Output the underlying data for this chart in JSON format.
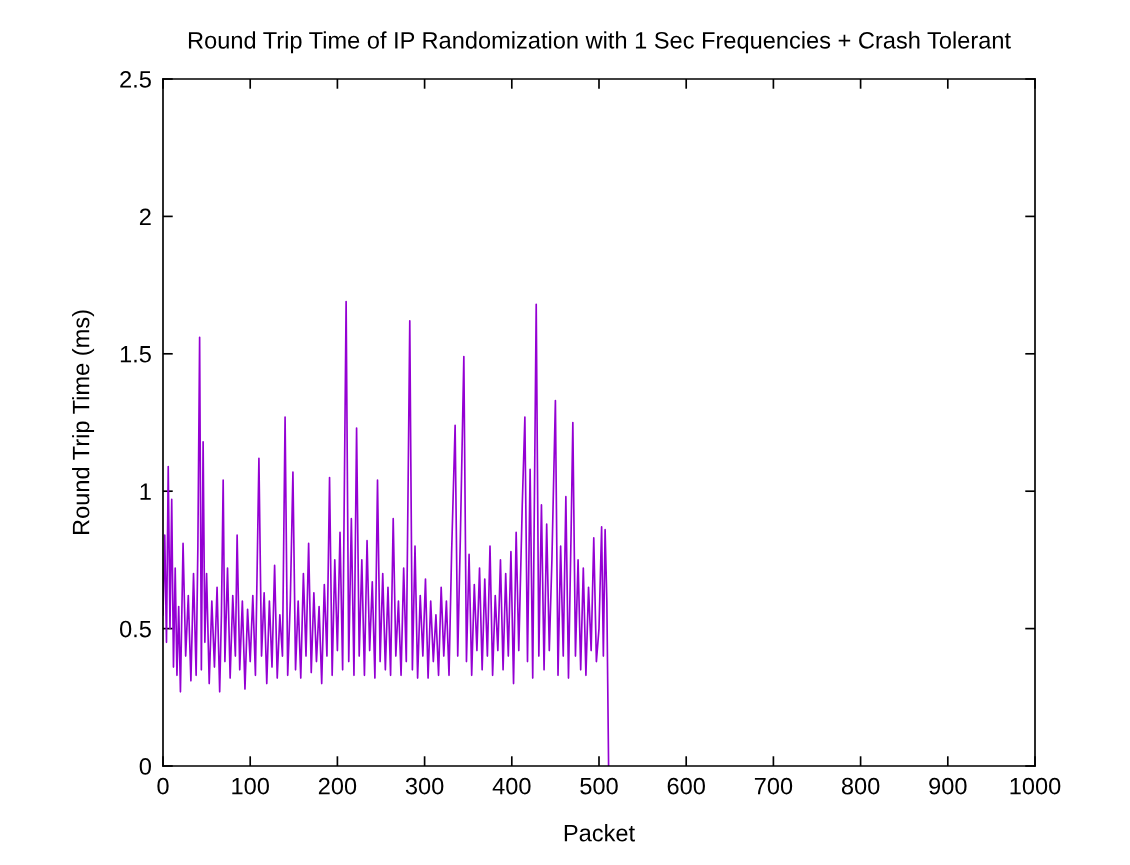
{
  "chart_data": {
    "type": "line",
    "title": "Round Trip Time of IP Randomization with 1 Sec Frequencies + Crash Tolerant",
    "xlabel": "Packet",
    "ylabel": "Round Trip Time (ms)",
    "xlim": [
      0,
      1000
    ],
    "xticks": [
      0,
      100,
      200,
      300,
      400,
      500,
      600,
      700,
      800,
      900,
      1000
    ],
    "ylim": [
      0,
      2.5
    ],
    "yticks": [
      0,
      0.5,
      1,
      1.5,
      2,
      2.5
    ],
    "grid": false,
    "series": [
      {
        "color": "#9400d3",
        "x": [
          0,
          2,
          4,
          6,
          8,
          10,
          12,
          14,
          16,
          18,
          20,
          23,
          26,
          29,
          32,
          35,
          38,
          40,
          42,
          44,
          46,
          48,
          50,
          53,
          56,
          59,
          62,
          65,
          67,
          69,
          71,
          74,
          77,
          80,
          83,
          85,
          88,
          91,
          94,
          97,
          100,
          103,
          106,
          110,
          113,
          116,
          119,
          122,
          125,
          128,
          131,
          134,
          137,
          140,
          143,
          146,
          149,
          152,
          155,
          158,
          161,
          164,
          167,
          170,
          173,
          176,
          179,
          182,
          185,
          188,
          191,
          194,
          197,
          200,
          203,
          206,
          210,
          213,
          216,
          219,
          222,
          225,
          228,
          231,
          234,
          237,
          240,
          243,
          246,
          249,
          252,
          255,
          258,
          261,
          264,
          267,
          270,
          273,
          276,
          279,
          283,
          286,
          289,
          292,
          295,
          298,
          301,
          304,
          307,
          310,
          313,
          316,
          319,
          322,
          325,
          328,
          331,
          335,
          338,
          341,
          345,
          348,
          351,
          354,
          357,
          360,
          363,
          366,
          369,
          372,
          375,
          378,
          381,
          384,
          387,
          390,
          393,
          396,
          399,
          402,
          405,
          408,
          412,
          415,
          418,
          421,
          424,
          428,
          431,
          434,
          437,
          440,
          443,
          446,
          450,
          453,
          456,
          459,
          462,
          465,
          468,
          470,
          473,
          476,
          479,
          482,
          485,
          488,
          491,
          494,
          497,
          500,
          503,
          505,
          507,
          509,
          510,
          511
        ],
        "values": [
          0.55,
          0.84,
          0.45,
          1.09,
          0.5,
          0.97,
          0.36,
          0.72,
          0.33,
          0.58,
          0.27,
          0.81,
          0.4,
          0.62,
          0.31,
          0.7,
          0.33,
          0.8,
          1.56,
          0.35,
          1.18,
          0.45,
          0.7,
          0.3,
          0.6,
          0.36,
          0.65,
          0.27,
          0.55,
          1.04,
          0.38,
          0.72,
          0.32,
          0.62,
          0.4,
          0.84,
          0.35,
          0.6,
          0.28,
          0.57,
          0.38,
          0.62,
          0.33,
          1.12,
          0.4,
          0.63,
          0.3,
          0.6,
          0.36,
          0.73,
          0.32,
          0.55,
          0.4,
          1.27,
          0.33,
          0.6,
          1.07,
          0.35,
          0.6,
          0.32,
          0.7,
          0.4,
          0.81,
          0.34,
          0.63,
          0.38,
          0.58,
          0.3,
          0.66,
          0.4,
          1.05,
          0.33,
          0.75,
          0.42,
          0.85,
          0.35,
          1.69,
          0.38,
          0.9,
          0.33,
          1.23,
          0.4,
          0.75,
          0.33,
          0.82,
          0.42,
          0.67,
          0.32,
          1.04,
          0.38,
          0.7,
          0.35,
          0.65,
          0.33,
          0.9,
          0.4,
          0.6,
          0.33,
          0.72,
          0.38,
          1.62,
          0.35,
          0.8,
          0.32,
          0.62,
          0.4,
          0.68,
          0.32,
          0.6,
          0.38,
          0.55,
          0.33,
          0.65,
          0.4,
          0.6,
          0.33,
          0.78,
          1.24,
          0.4,
          0.83,
          1.49,
          0.38,
          0.77,
          0.33,
          0.66,
          0.42,
          0.72,
          0.35,
          0.68,
          0.4,
          0.8,
          0.33,
          0.62,
          0.42,
          0.75,
          0.35,
          0.7,
          0.4,
          0.78,
          0.3,
          0.85,
          0.42,
          0.95,
          1.27,
          0.38,
          1.08,
          0.32,
          1.68,
          0.4,
          0.95,
          0.35,
          0.88,
          0.42,
          0.75,
          1.33,
          0.33,
          0.8,
          0.4,
          0.98,
          0.32,
          0.85,
          1.25,
          0.4,
          0.75,
          0.35,
          0.72,
          0.33,
          0.65,
          0.42,
          0.83,
          0.38,
          0.5,
          0.87,
          0.4,
          0.86,
          0.6,
          0.3,
          0
        ]
      }
    ]
  }
}
